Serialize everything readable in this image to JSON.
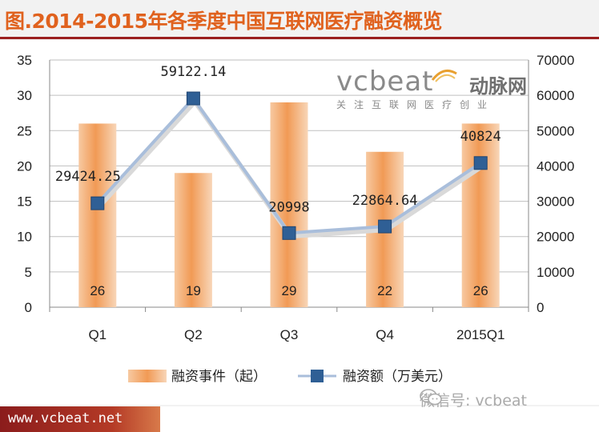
{
  "title": "图.2014-2015年各季度中国互联网医疗融资概览",
  "footer_url": "www.vcbeat.net",
  "wechat_text": "微信号: vcbeat",
  "watermark": {
    "brand": "vcbeat",
    "cn": "动脉网",
    "slogan": "关注互联网医疗创业"
  },
  "colors": {
    "title": "#e0621e",
    "bar": "#f0a060",
    "line": "#a9bedb",
    "marker": "#2f5f95",
    "footer_bar": "#8b1c1c"
  },
  "chart_data": {
    "type": "bar",
    "categories": [
      "Q1",
      "Q2",
      "Q3",
      "Q4",
      "2015Q1"
    ],
    "series": [
      {
        "name": "融资事件（起）",
        "type": "bar",
        "axis": "left",
        "values": [
          26,
          19,
          29,
          22,
          26
        ],
        "labels": [
          "26",
          "19",
          "29",
          "22",
          "26"
        ]
      },
      {
        "name": "融资额（万美元）",
        "type": "line",
        "axis": "right",
        "values": [
          29424.25,
          59122.14,
          20998,
          22864.64,
          40824
        ],
        "labels": [
          "29424.25",
          "59122.14",
          "20998",
          "22864.64",
          "40824"
        ]
      }
    ],
    "y_left": {
      "ylim": [
        0,
        35
      ],
      "ticks": [
        "0",
        "5",
        "10",
        "15",
        "20",
        "25",
        "30",
        "35"
      ]
    },
    "y_right": {
      "ylim": [
        0,
        70000
      ],
      "ticks": [
        "0",
        "10000",
        "20000",
        "30000",
        "40000",
        "50000",
        "60000",
        "70000"
      ]
    },
    "grid": true,
    "legend_position": "bottom"
  }
}
